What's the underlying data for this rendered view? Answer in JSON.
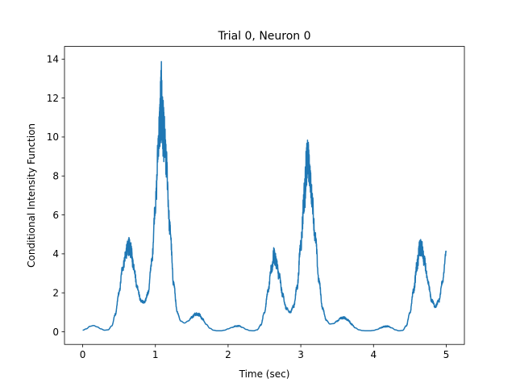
{
  "chart_data": {
    "type": "line",
    "title": "Trial 0, Neuron 0",
    "xlabel": "Time (sec)",
    "ylabel": "Conditional Intensity Function",
    "xlim": [
      -0.25,
      5.25
    ],
    "ylim": [
      -0.65,
      14.65
    ],
    "x_ticks": [
      0,
      1,
      2,
      3,
      4,
      5
    ],
    "y_ticks": [
      0,
      2,
      4,
      6,
      8,
      10,
      12,
      14
    ],
    "grid": false,
    "legend": "none",
    "series": [
      {
        "color": "#1f77b4",
        "x": [
          0.0,
          0.05,
          0.1,
          0.15,
          0.2,
          0.25,
          0.3,
          0.35,
          0.4,
          0.45,
          0.5,
          0.55,
          0.6,
          0.63,
          0.66,
          0.7,
          0.75,
          0.8,
          0.85,
          0.9,
          0.95,
          1.0,
          1.05,
          1.08,
          1.1,
          1.12,
          1.15,
          1.2,
          1.25,
          1.3,
          1.35,
          1.4,
          1.45,
          1.5,
          1.55,
          1.6,
          1.65,
          1.7,
          1.75,
          1.8,
          1.85,
          1.9,
          1.95,
          2.0,
          2.05,
          2.1,
          2.15,
          2.2,
          2.25,
          2.3,
          2.35,
          2.4,
          2.45,
          2.5,
          2.55,
          2.6,
          2.63,
          2.66,
          2.7,
          2.75,
          2.8,
          2.85,
          2.9,
          2.95,
          3.0,
          3.05,
          3.08,
          3.1,
          3.12,
          3.15,
          3.2,
          3.25,
          3.3,
          3.35,
          3.4,
          3.45,
          3.5,
          3.55,
          3.6,
          3.65,
          3.7,
          3.75,
          3.8,
          3.85,
          3.9,
          3.95,
          4.0,
          4.05,
          4.1,
          4.15,
          4.2,
          4.25,
          4.3,
          4.35,
          4.4,
          4.45,
          4.5,
          4.55,
          4.6,
          4.63,
          4.66,
          4.7,
          4.75,
          4.8,
          4.85,
          4.9,
          4.95,
          5.0
        ],
        "y": [
          0.08,
          0.15,
          0.28,
          0.32,
          0.25,
          0.15,
          0.08,
          0.1,
          0.3,
          0.9,
          2.0,
          3.3,
          4.1,
          4.4,
          4.2,
          3.4,
          2.3,
          1.6,
          1.5,
          2.0,
          3.6,
          6.5,
          10.2,
          11.8,
          10.6,
          10.0,
          8.6,
          5.3,
          2.5,
          1.0,
          0.55,
          0.45,
          0.55,
          0.75,
          0.9,
          0.88,
          0.65,
          0.38,
          0.18,
          0.08,
          0.05,
          0.05,
          0.08,
          0.15,
          0.22,
          0.28,
          0.3,
          0.22,
          0.12,
          0.06,
          0.05,
          0.1,
          0.35,
          1.0,
          2.1,
          3.3,
          3.9,
          3.6,
          2.9,
          1.9,
          1.2,
          1.0,
          1.3,
          2.3,
          4.5,
          7.0,
          8.6,
          8.9,
          8.2,
          7.0,
          4.8,
          2.6,
          1.2,
          0.6,
          0.4,
          0.42,
          0.55,
          0.7,
          0.72,
          0.6,
          0.38,
          0.2,
          0.1,
          0.06,
          0.05,
          0.05,
          0.07,
          0.12,
          0.2,
          0.27,
          0.28,
          0.2,
          0.1,
          0.05,
          0.07,
          0.3,
          0.95,
          2.1,
          3.4,
          4.2,
          4.3,
          3.6,
          2.5,
          1.6,
          1.3,
          1.6,
          2.6,
          4.1
        ],
        "noise": [
          0,
          0,
          0,
          0,
          0,
          0,
          0,
          0,
          0,
          0.05,
          0.1,
          0.2,
          0.35,
          0.5,
          0.4,
          0.25,
          0.12,
          0.08,
          0.08,
          0.1,
          0.2,
          0.5,
          1.2,
          2.2,
          1.6,
          1.3,
          0.9,
          0.4,
          0.15,
          0.05,
          0,
          0,
          0,
          0.05,
          0.08,
          0.08,
          0.05,
          0,
          0,
          0,
          0,
          0,
          0,
          0,
          0,
          0.03,
          0.03,
          0,
          0,
          0,
          0,
          0,
          0.02,
          0.05,
          0.1,
          0.3,
          0.45,
          0.35,
          0.25,
          0.12,
          0.08,
          0.06,
          0.08,
          0.15,
          0.4,
          0.9,
          1.1,
          1.0,
          0.8,
          0.6,
          0.35,
          0.15,
          0.06,
          0.02,
          0,
          0,
          0.03,
          0.05,
          0.06,
          0.05,
          0.03,
          0,
          0,
          0,
          0,
          0,
          0,
          0,
          0.02,
          0.03,
          0.03,
          0,
          0,
          0,
          0,
          0.02,
          0.05,
          0.12,
          0.35,
          0.5,
          0.45,
          0.3,
          0.15,
          0.1,
          0.08,
          0.1,
          0.12,
          0.1
        ]
      }
    ]
  }
}
